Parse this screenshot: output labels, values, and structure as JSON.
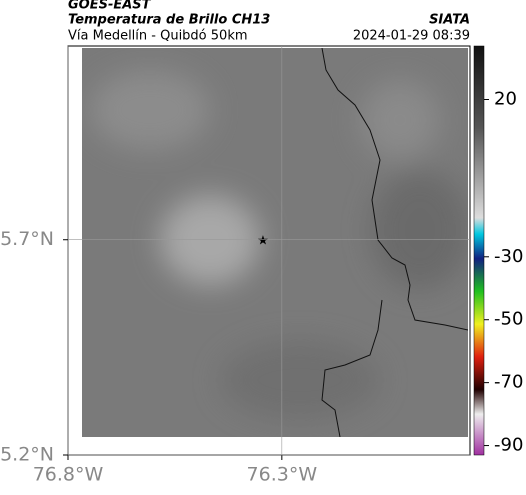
{
  "header": {
    "source": "GOES-EAST",
    "product": "Temperatura de Brillo CH13",
    "agency": "SIATA",
    "subtitle": "Vía Medellín - Quibdó 50km",
    "timestamp": "2024-01-29 08:39"
  },
  "map": {
    "xlim": [
      -76.8,
      -75.86
    ],
    "ylim": [
      5.2,
      6.15
    ],
    "xticks": [
      {
        "value": -76.8,
        "label": "76.8°W"
      },
      {
        "value": -76.3,
        "label": "76.3°W"
      }
    ],
    "yticks": [
      {
        "value": 5.2,
        "label": "5.2°N"
      },
      {
        "value": 5.7,
        "label": "5.7°N"
      }
    ]
  },
  "colorbar": {
    "lim": [
      -93,
      37
    ],
    "ticks": [
      20,
      -30,
      -50,
      -70,
      -90
    ]
  }
}
